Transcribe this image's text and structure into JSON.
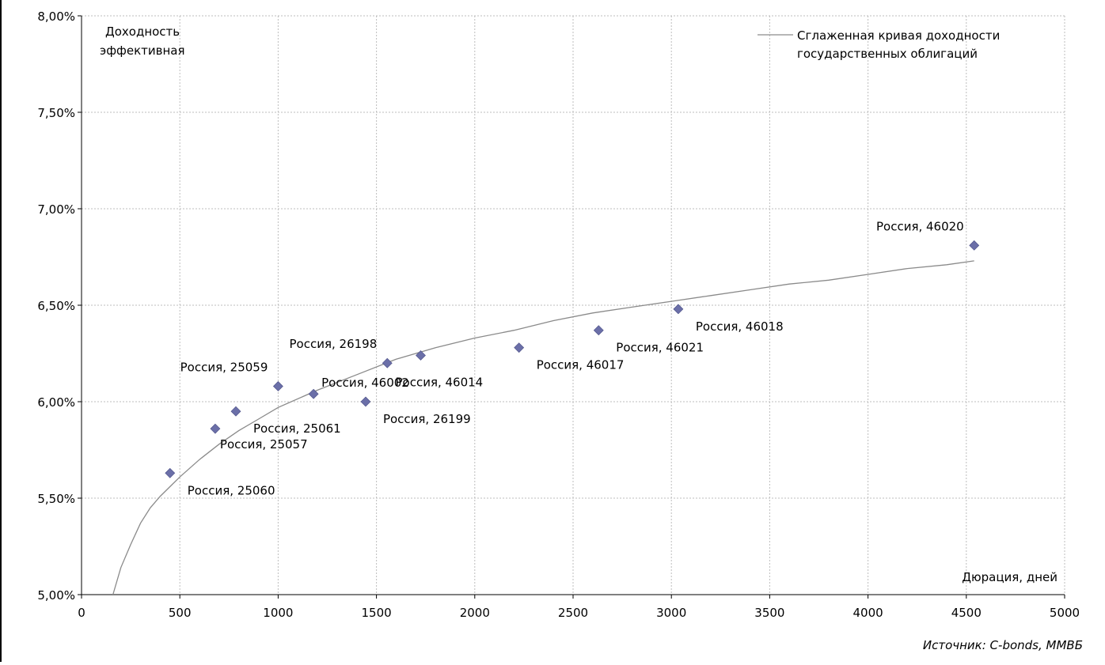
{
  "chart_data": {
    "type": "scatter",
    "ylabel_lines": [
      "Доходность",
      "эффективная"
    ],
    "xlabel": "Дюрация, дней",
    "xlim": [
      0,
      5000
    ],
    "ylim": [
      5.0,
      8.0
    ],
    "x_ticks": [
      0,
      500,
      1000,
      1500,
      2000,
      2500,
      3000,
      3500,
      4000,
      4500,
      5000
    ],
    "x_tick_labels": [
      "0",
      "500",
      "1000",
      "1500",
      "2000",
      "2500",
      "3000",
      "3500",
      "4000",
      "4500",
      "5000"
    ],
    "y_ticks": [
      5.0,
      5.5,
      6.0,
      6.5,
      7.0,
      7.5,
      8.0
    ],
    "y_tick_labels": [
      "5,00%",
      "5,50%",
      "6,00%",
      "6,50%",
      "7,00%",
      "7,50%",
      "8,00%"
    ],
    "grid": true,
    "legend_position": "top-right",
    "points": [
      {
        "label": "Россия, 25060",
        "x": 450,
        "y": 5.63,
        "label_pos": "below-right"
      },
      {
        "label": "Россия, 25057",
        "x": 680,
        "y": 5.86,
        "label_pos": "below-right-far"
      },
      {
        "label": "Россия, 25061",
        "x": 785,
        "y": 5.95,
        "label_pos": "below-right"
      },
      {
        "label": "Россия, 25059",
        "x": 1000,
        "y": 6.08,
        "label_pos": "above-left"
      },
      {
        "label": "Россия, 46002",
        "x": 1180,
        "y": 6.04,
        "label_pos": "right"
      },
      {
        "label": "Россия, 26199",
        "x": 1445,
        "y": 6.0,
        "label_pos": "below-right"
      },
      {
        "label": "Россия, 26198",
        "x": 1555,
        "y": 6.2,
        "label_pos": "above-left"
      },
      {
        "label": "Россия, 46014",
        "x": 1725,
        "y": 6.24,
        "label_pos": "below-left"
      },
      {
        "label": "Россия, 46017",
        "x": 2225,
        "y": 6.28,
        "label_pos": "below-right"
      },
      {
        "label": "Россия, 46021",
        "x": 2630,
        "y": 6.37,
        "label_pos": "below-right"
      },
      {
        "label": "Россия, 46018",
        "x": 3035,
        "y": 6.48,
        "label_pos": "below-right"
      },
      {
        "label": "Россия, 46020",
        "x": 4540,
        "y": 6.81,
        "label_pos": "above-left"
      }
    ],
    "series": [
      {
        "name_lines": [
          "Сглаженная кривая доходности",
          "государственных облигаций"
        ],
        "type": "line",
        "x": [
          160,
          200,
          250,
          300,
          350,
          400,
          450,
          500,
          600,
          700,
          800,
          900,
          1000,
          1200,
          1400,
          1600,
          1800,
          2000,
          2200,
          2400,
          2600,
          2800,
          3000,
          3200,
          3400,
          3600,
          3800,
          4000,
          4200,
          4400,
          4540
        ],
        "y": [
          5.0,
          5.14,
          5.26,
          5.37,
          5.45,
          5.51,
          5.56,
          5.61,
          5.7,
          5.78,
          5.85,
          5.91,
          5.97,
          6.06,
          6.14,
          6.22,
          6.28,
          6.33,
          6.37,
          6.42,
          6.46,
          6.49,
          6.52,
          6.55,
          6.58,
          6.61,
          6.63,
          6.66,
          6.69,
          6.71,
          6.73
        ],
        "color": "#8a8a8a"
      }
    ],
    "marker_color": "#6b6fa8",
    "source": "Источник: C-bonds, ММВБ"
  }
}
